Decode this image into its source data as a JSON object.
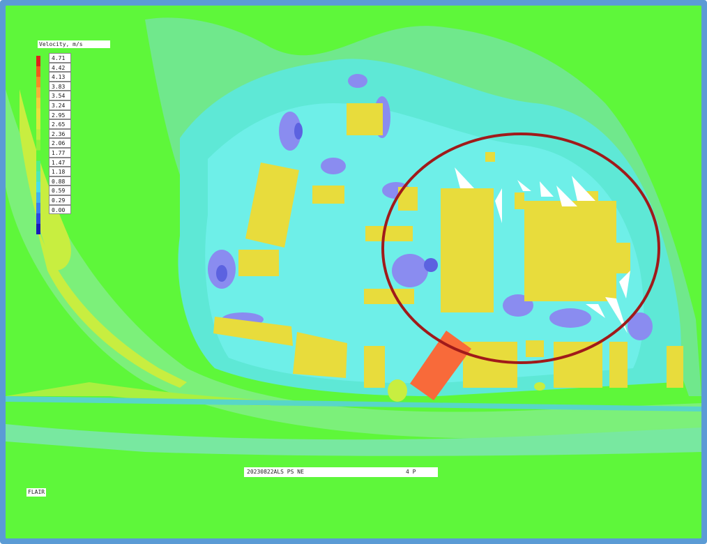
{
  "legend": {
    "title": "Velocity, m/s",
    "values": [
      "4.71",
      "4.42",
      "4.13",
      "3.83",
      "3.54",
      "3.24",
      "2.95",
      "2.65",
      "2.36",
      "2.06",
      "1.77",
      "1.47",
      "1.18",
      "0.88",
      "0.59",
      "0.29",
      "0.00"
    ],
    "colors": [
      "#e0201a",
      "#f25a1e",
      "#f88a28",
      "#f4b23a",
      "#f0d03c",
      "#e8e23c",
      "#d8ec3c",
      "#b8f03c",
      "#8ef23c",
      "#5ef73a",
      "#4ef08a",
      "#4ce8b8",
      "#48e0e8",
      "#40b4f0",
      "#3a7ef0",
      "#2e46e0",
      "#1a1ab8"
    ]
  },
  "status": {
    "case_id": "20230822ALS PS NE",
    "height": "4 P"
  },
  "corner_label": "FLAIR",
  "colors": {
    "frame": "#5b9bd5",
    "background_flow": "#5ef73a",
    "building": "#e8dc3c",
    "highlight_building": "#f86a3a",
    "annotation_circle": "#a01a1a"
  }
}
